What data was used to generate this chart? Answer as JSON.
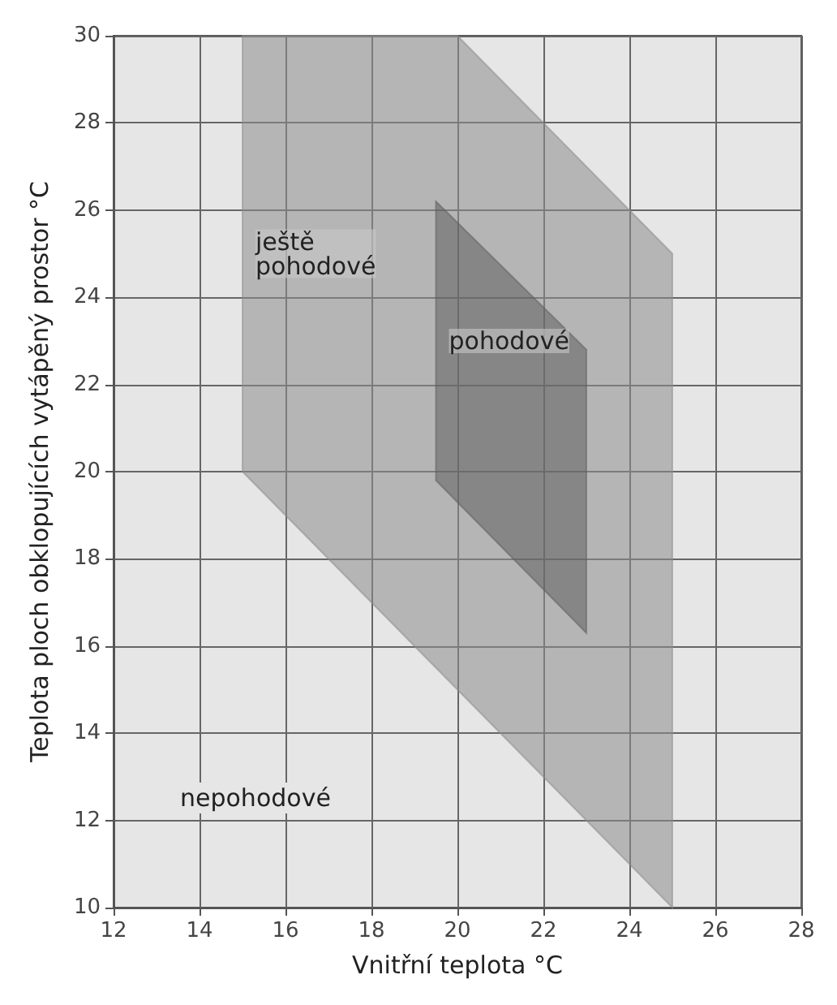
{
  "chart_data": {
    "type": "area",
    "xlabel": "Vnitřní teplota °C",
    "ylabel": "Teplota ploch obklopujících vytápěný prostor °C",
    "series": [
      {
        "name": "ještě\npohodové",
        "color": "#8c8c8c",
        "x": [
          15,
          15,
          20,
          25,
          25,
          15
        ],
        "values": [
          20,
          30,
          30,
          25,
          10,
          20
        ]
      },
      {
        "name": "pohodové",
        "color": "#5e5e5e",
        "x": [
          19.5,
          19.5,
          23,
          23,
          19.5
        ],
        "values": [
          19.8,
          26.2,
          22.8,
          16.3,
          19.8
        ]
      }
    ],
    "annotations": [
      "nepohodové"
    ],
    "xlim": [
      12,
      28
    ],
    "xticks": [
      12,
      14,
      16,
      18,
      20,
      22,
      24,
      26,
      28
    ],
    "ylim": [
      10,
      30
    ],
    "yticks": [
      10,
      12,
      14,
      16,
      18,
      20,
      22,
      24,
      26,
      28,
      30
    ],
    "grid": true
  }
}
